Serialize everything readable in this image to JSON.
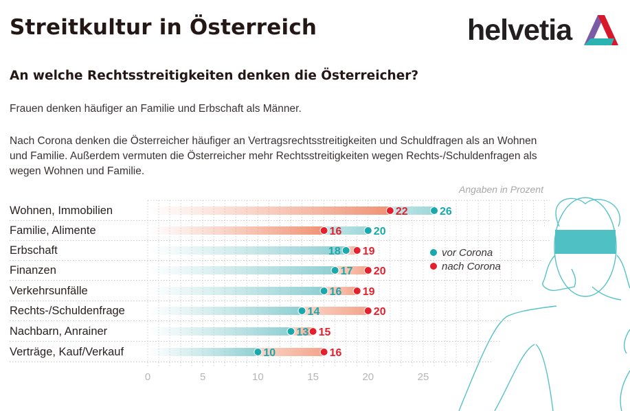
{
  "header": {
    "title": "Streitkultur in Österreich",
    "brand": "helvetia",
    "subtitle": "An welche Rechtsstreitigkeiten denken die Österreicher?"
  },
  "text": {
    "paragraph1": "Frauen denken häufiger an Familie und Erbschaft als Männer.",
    "paragraph2": "Nach Corona denken die Österreicher häufiger an Vertragsrechtsstreitigkeiten und Schuldfragen als an Wohnen und Familie. Außerdem vermuten die Österreicher mehr Rechtsstreitigkeiten wegen Rechts-/Schuldenfragen als wegen Wohnen und Familie."
  },
  "colors": {
    "vor": "#19a9ad",
    "nach": "#e4202c",
    "vor_bar": "#9fd6d8",
    "nach_bar": "#f3a48a",
    "illustration": "#55c2c6",
    "logo_purple": "#7b5aa6",
    "logo_red": "#d7182a",
    "logo_teal": "#2ab3b1"
  },
  "chart_data": {
    "type": "dumbbell",
    "title": "An welche Rechtsstreitigkeiten denken die Österreicher?",
    "unit_note": "Angaben in Prozent",
    "xlabel": "",
    "ylabel": "",
    "xlim": [
      0,
      25
    ],
    "x_ticks": [
      "0",
      "5",
      "10",
      "15",
      "20",
      "25"
    ],
    "grid": true,
    "legend_position": "right",
    "categories": [
      "Wohnen, Immobilien",
      "Familie, Alimente",
      "Erbschaft",
      "Finanzen",
      "Verkehrsunfälle",
      "Rechts-/Schuldenfrage",
      "Nachbarn, Anrainer",
      "Verträge, Kauf/Verkauf"
    ],
    "series": [
      {
        "name": "vor Corona",
        "values": [
          26,
          20,
          18,
          17,
          16,
          14,
          13,
          10
        ]
      },
      {
        "name": "nach Corona",
        "values": [
          22,
          16,
          19,
          20,
          19,
          20,
          15,
          16
        ]
      }
    ]
  }
}
